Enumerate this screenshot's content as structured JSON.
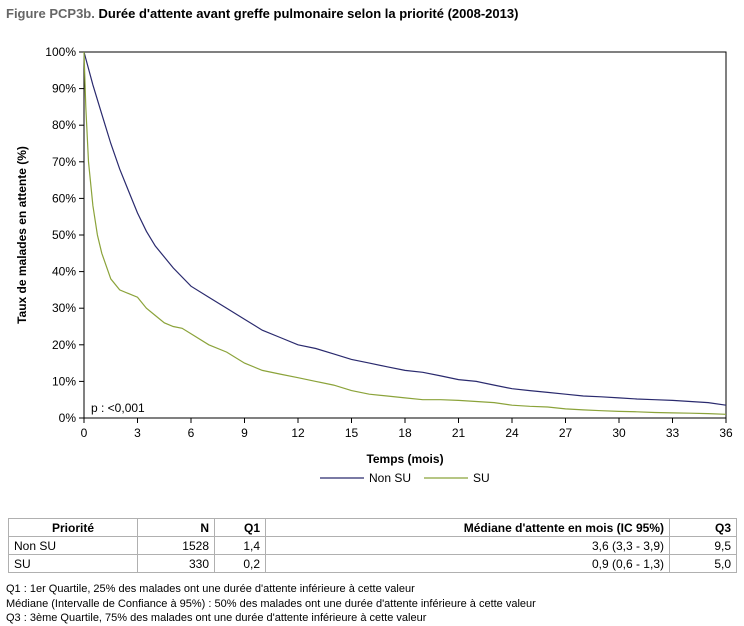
{
  "title": {
    "prefix": "Figure PCP3b.",
    "text": "Durée d'attente avant greffe pulmonaire selon la priorité (2008-2013)"
  },
  "chart_data": {
    "type": "line",
    "xlabel": "Temps (mois)",
    "ylabel": "Taux de malades en attente (%)",
    "xlim": [
      0,
      36
    ],
    "ylim": [
      0,
      100
    ],
    "x_ticks": [
      0,
      3,
      6,
      9,
      12,
      15,
      18,
      21,
      24,
      27,
      30,
      33,
      36
    ],
    "y_ticks": [
      0,
      10,
      20,
      30,
      40,
      50,
      60,
      70,
      80,
      90,
      100
    ],
    "y_tick_labels": [
      "0%",
      "10%",
      "20%",
      "30%",
      "40%",
      "50%",
      "60%",
      "70%",
      "80%",
      "90%",
      "100%"
    ],
    "grid": false,
    "legend_position": "bottom-center",
    "annotation": "p : <0,001",
    "series": [
      {
        "name": "Non SU",
        "color": "#2a2a6e",
        "x": [
          0,
          0.5,
          1,
          1.5,
          2,
          2.5,
          3,
          3.5,
          4,
          4.5,
          5,
          6,
          7,
          8,
          9,
          10,
          11,
          12,
          13,
          14,
          15,
          16,
          17,
          18,
          19,
          20,
          21,
          22,
          23,
          24,
          25,
          26,
          27,
          28,
          29,
          30,
          31,
          32,
          33,
          34,
          35,
          36
        ],
        "y": [
          100,
          91,
          83,
          75,
          68,
          62,
          56,
          51,
          47,
          44,
          41,
          36,
          33,
          30,
          27,
          24,
          22,
          20,
          19,
          17.5,
          16,
          15,
          14,
          13,
          12.5,
          11.5,
          10.5,
          10,
          9,
          8,
          7.5,
          7,
          6.5,
          6,
          5.8,
          5.5,
          5.2,
          5,
          4.8,
          4.5,
          4.2,
          3.5
        ]
      },
      {
        "name": "SU",
        "color": "#8ba33a",
        "x": [
          0,
          0.1,
          0.25,
          0.5,
          0.75,
          1,
          1.5,
          2,
          2.5,
          3,
          3.5,
          4,
          4.5,
          5,
          5.5,
          6,
          7,
          8,
          9,
          10,
          11,
          12,
          13,
          14,
          15,
          16,
          17,
          18,
          19,
          20,
          21,
          22,
          23,
          24,
          25,
          26,
          27,
          28,
          29,
          30,
          31,
          32,
          33,
          34,
          35,
          36
        ],
        "y": [
          100,
          85,
          70,
          58,
          50,
          45,
          38,
          35,
          34,
          33,
          30,
          28,
          26,
          25,
          24.5,
          23,
          20,
          18,
          15,
          13,
          12,
          11,
          10,
          9,
          7.5,
          6.5,
          6,
          5.5,
          5,
          5,
          4.8,
          4.5,
          4.2,
          3.5,
          3.2,
          3,
          2.5,
          2.2,
          2,
          1.8,
          1.7,
          1.5,
          1.4,
          1.3,
          1.2,
          1
        ]
      }
    ]
  },
  "table": {
    "headers": [
      "Priorité",
      "N",
      "Q1",
      "Médiane d'attente en mois (IC 95%)",
      "Q3"
    ],
    "rows": [
      [
        "Non SU",
        "1528",
        "1,4",
        "3,6 (3,3 - 3,9)",
        "9,5"
      ],
      [
        "SU",
        "330",
        "0,2",
        "0,9 (0,6 - 1,3)",
        "5,0"
      ]
    ]
  },
  "notes": [
    "Q1 : 1er Quartile, 25% des malades ont une durée d'attente inférieure à cette valeur",
    "Médiane (Intervalle de Confiance à 95%) : 50% des malades ont une durée d'attente inférieure à cette valeur",
    "Q3 : 3ème Quartile, 75% des malades ont une durée d'attente inférieure à cette valeur"
  ]
}
